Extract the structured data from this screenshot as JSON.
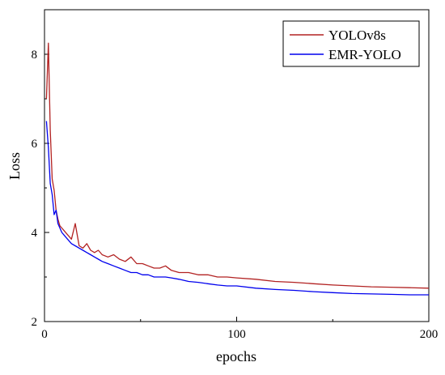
{
  "chart_data": {
    "type": "line",
    "title": "",
    "xlabel": "epochs",
    "ylabel": "Loss",
    "xlim": [
      0,
      200
    ],
    "ylim": [
      2,
      9
    ],
    "xticks": [
      0,
      100,
      200
    ],
    "xtick_labels": [
      "0",
      "100",
      "200"
    ],
    "yticks": [
      2,
      4,
      6,
      8
    ],
    "ytick_labels": [
      "2",
      "4",
      "6",
      "8"
    ],
    "grid": false,
    "legend": {
      "position": "top-right",
      "entries": [
        "YOLOv8s",
        "EMR-YOLO"
      ]
    },
    "series": [
      {
        "name": "YOLOv8s",
        "color": "#b22222",
        "x": [
          1,
          2,
          3,
          4,
          5,
          6,
          7,
          8,
          9,
          10,
          12,
          14,
          16,
          18,
          20,
          22,
          24,
          26,
          28,
          30,
          33,
          36,
          39,
          42,
          45,
          48,
          51,
          54,
          57,
          60,
          63,
          66,
          70,
          75,
          80,
          85,
          90,
          95,
          100,
          110,
          120,
          130,
          140,
          150,
          160,
          170,
          180,
          190,
          200
        ],
        "values": [
          7.0,
          8.25,
          6.3,
          5.2,
          4.95,
          4.5,
          4.3,
          4.15,
          4.1,
          4.05,
          3.95,
          3.85,
          4.2,
          3.7,
          3.65,
          3.75,
          3.6,
          3.55,
          3.6,
          3.5,
          3.45,
          3.5,
          3.4,
          3.35,
          3.45,
          3.3,
          3.3,
          3.25,
          3.2,
          3.2,
          3.25,
          3.15,
          3.1,
          3.1,
          3.05,
          3.05,
          3.0,
          3.0,
          2.98,
          2.95,
          2.9,
          2.88,
          2.85,
          2.82,
          2.8,
          2.78,
          2.77,
          2.76,
          2.75
        ]
      },
      {
        "name": "EMR-YOLO",
        "color": "#0000ee",
        "x": [
          1,
          2,
          3,
          4,
          5,
          6,
          7,
          8,
          9,
          10,
          12,
          14,
          16,
          18,
          20,
          22,
          24,
          26,
          28,
          30,
          33,
          36,
          39,
          42,
          45,
          48,
          51,
          54,
          57,
          60,
          63,
          66,
          70,
          75,
          80,
          85,
          90,
          95,
          100,
          110,
          120,
          130,
          140,
          150,
          160,
          170,
          180,
          190,
          200
        ],
        "values": [
          6.5,
          5.9,
          5.1,
          4.85,
          4.4,
          4.5,
          4.2,
          4.1,
          4.0,
          3.95,
          3.85,
          3.75,
          3.7,
          3.65,
          3.6,
          3.55,
          3.5,
          3.45,
          3.4,
          3.35,
          3.3,
          3.25,
          3.2,
          3.15,
          3.1,
          3.1,
          3.05,
          3.05,
          3.0,
          3.0,
          3.0,
          2.98,
          2.95,
          2.9,
          2.88,
          2.85,
          2.82,
          2.8,
          2.8,
          2.75,
          2.72,
          2.7,
          2.67,
          2.65,
          2.63,
          2.62,
          2.61,
          2.6,
          2.6
        ]
      }
    ]
  }
}
